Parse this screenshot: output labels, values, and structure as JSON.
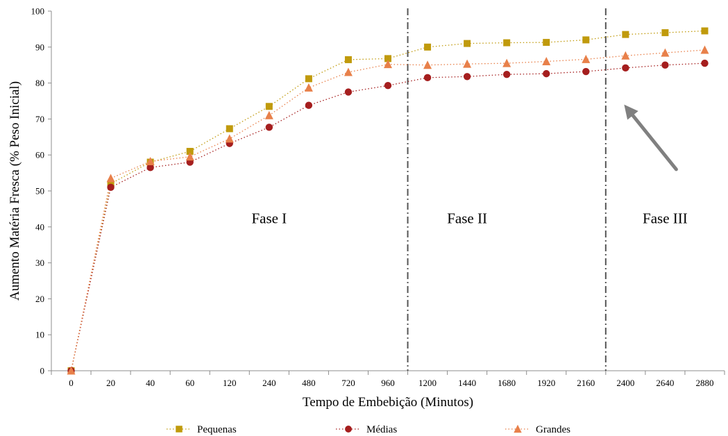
{
  "chart_data": {
    "type": "line",
    "xlabel": "Tempo de Embebição (Minutos)",
    "ylabel": "Aumento Matéria Fresca (% Peso Inicial)",
    "categories": [
      "0",
      "20",
      "40",
      "60",
      "120",
      "240",
      "480",
      "720",
      "960",
      "1200",
      "1440",
      "1680",
      "1920",
      "2160",
      "2400",
      "2640",
      "2880"
    ],
    "ylim": [
      0,
      100
    ],
    "yticks": [
      0,
      10,
      20,
      30,
      40,
      50,
      60,
      70,
      80,
      90,
      100
    ],
    "grid": false,
    "legend_position": "bottom",
    "series": [
      {
        "name": "Pequenas",
        "marker": "square",
        "color": "#C09A0C",
        "values": [
          0,
          52,
          58,
          61,
          67.3,
          73.5,
          81.2,
          86.5,
          86.8,
          90,
          91,
          91.2,
          91.3,
          92,
          93.5,
          94,
          94.5
        ]
      },
      {
        "name": "Médias",
        "marker": "circle",
        "color": "#A51E1E",
        "values": [
          0,
          51,
          56.5,
          58,
          63.2,
          67.7,
          73.8,
          77.5,
          79.3,
          81.5,
          81.8,
          82.4,
          82.6,
          83.2,
          84.2,
          85,
          85.5
        ]
      },
      {
        "name": "Grandes",
        "marker": "triangle",
        "color": "#E8804A",
        "values": [
          0,
          53.5,
          58.2,
          59.5,
          64.5,
          71,
          78.7,
          83,
          85.2,
          85,
          85.3,
          85.5,
          86,
          86.6,
          87.6,
          88.4,
          89.2
        ]
      }
    ],
    "phase_dividers": [
      {
        "after_category": "960"
      },
      {
        "after_category": "2160"
      }
    ],
    "annotations": {
      "phase_labels": [
        {
          "text": "Fase I",
          "category": "240",
          "y": 41
        },
        {
          "text": "Fase II",
          "category": "1440",
          "y": 41
        },
        {
          "text": "Fase III",
          "category": "2640",
          "y": 41
        }
      ],
      "arrow": {
        "color": "#808080",
        "from": {
          "category": "2640",
          "y": 56
        },
        "to": {
          "category": "2400",
          "y": 74
        }
      }
    }
  }
}
